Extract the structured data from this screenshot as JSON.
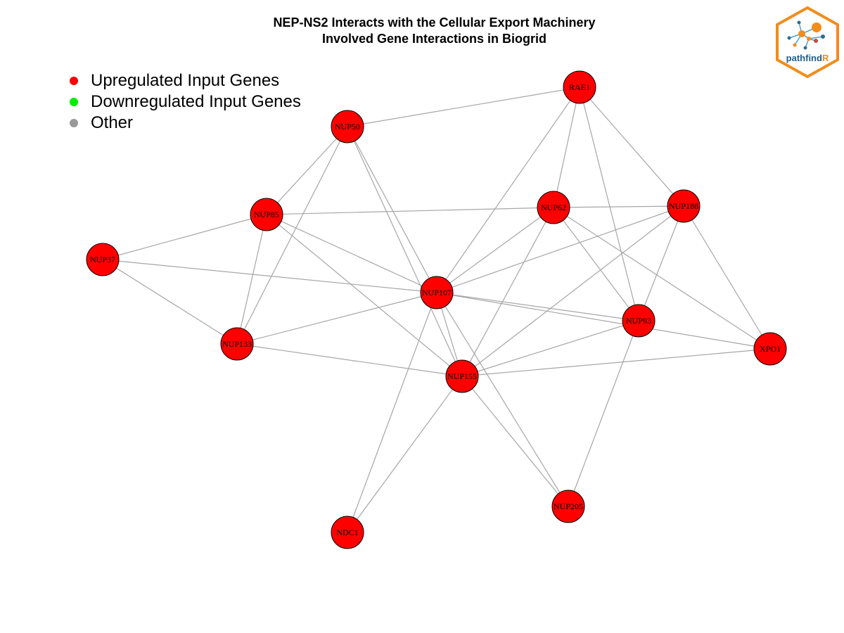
{
  "title": {
    "line1": "NEP-NS2 Interacts with the Cellular Export Machinery",
    "line2": "Involved Gene Interactions in Biogrid"
  },
  "legend": [
    {
      "label": "Upregulated Input Genes",
      "color": "#ff0000"
    },
    {
      "label": "Downregulated Input Genes",
      "color": "#00ee00"
    },
    {
      "label": "Other",
      "color": "#999999"
    }
  ],
  "logo": {
    "text_main": "pathfind",
    "text_accent": "R",
    "border_color": "#f28c1a",
    "main_color": "#1f5f8b",
    "accent_color": "#f28c1a"
  },
  "graph": {
    "node_color": "#ff0000",
    "edge_color": "#a6a6a6",
    "nodes": [
      {
        "id": "RAE1"
      },
      {
        "id": "NUP50"
      },
      {
        "id": "NUP85"
      },
      {
        "id": "NUP62"
      },
      {
        "id": "NUP188"
      },
      {
        "id": "NUP37"
      },
      {
        "id": "NUP107"
      },
      {
        "id": "NUP93"
      },
      {
        "id": "NUP133"
      },
      {
        "id": "XPO1"
      },
      {
        "id": "NUP155"
      },
      {
        "id": "NUP205"
      },
      {
        "id": "NDC1"
      }
    ],
    "edges": [
      [
        "RAE1",
        "NUP50"
      ],
      [
        "RAE1",
        "NUP62"
      ],
      [
        "RAE1",
        "NUP188"
      ],
      [
        "RAE1",
        "NUP107"
      ],
      [
        "RAE1",
        "NUP93"
      ],
      [
        "NUP50",
        "NUP85"
      ],
      [
        "NUP50",
        "NUP133"
      ],
      [
        "NUP50",
        "NUP107"
      ],
      [
        "NUP50",
        "NUP155"
      ],
      [
        "NUP85",
        "NUP62"
      ],
      [
        "NUP85",
        "NUP37"
      ],
      [
        "NUP85",
        "NUP107"
      ],
      [
        "NUP85",
        "NUP133"
      ],
      [
        "NUP85",
        "NUP155"
      ],
      [
        "NUP62",
        "NUP188"
      ],
      [
        "NUP62",
        "NUP107"
      ],
      [
        "NUP62",
        "NUP93"
      ],
      [
        "NUP62",
        "NUP155"
      ],
      [
        "NUP62",
        "XPO1"
      ],
      [
        "NUP188",
        "NUP107"
      ],
      [
        "NUP188",
        "NUP93"
      ],
      [
        "NUP188",
        "NUP155"
      ],
      [
        "NUP188",
        "XPO1"
      ],
      [
        "NUP37",
        "NUP107"
      ],
      [
        "NUP37",
        "NUP133"
      ],
      [
        "NUP107",
        "NUP93"
      ],
      [
        "NUP107",
        "NUP133"
      ],
      [
        "NUP107",
        "NUP155"
      ],
      [
        "NUP107",
        "NUP205"
      ],
      [
        "NUP107",
        "NDC1"
      ],
      [
        "NUP107",
        "XPO1"
      ],
      [
        "NUP93",
        "NUP155"
      ],
      [
        "NUP93",
        "NUP205"
      ],
      [
        "NUP133",
        "NUP155"
      ],
      [
        "NUP155",
        "XPO1"
      ],
      [
        "NUP155",
        "NUP205"
      ],
      [
        "NUP155",
        "NDC1"
      ]
    ]
  }
}
